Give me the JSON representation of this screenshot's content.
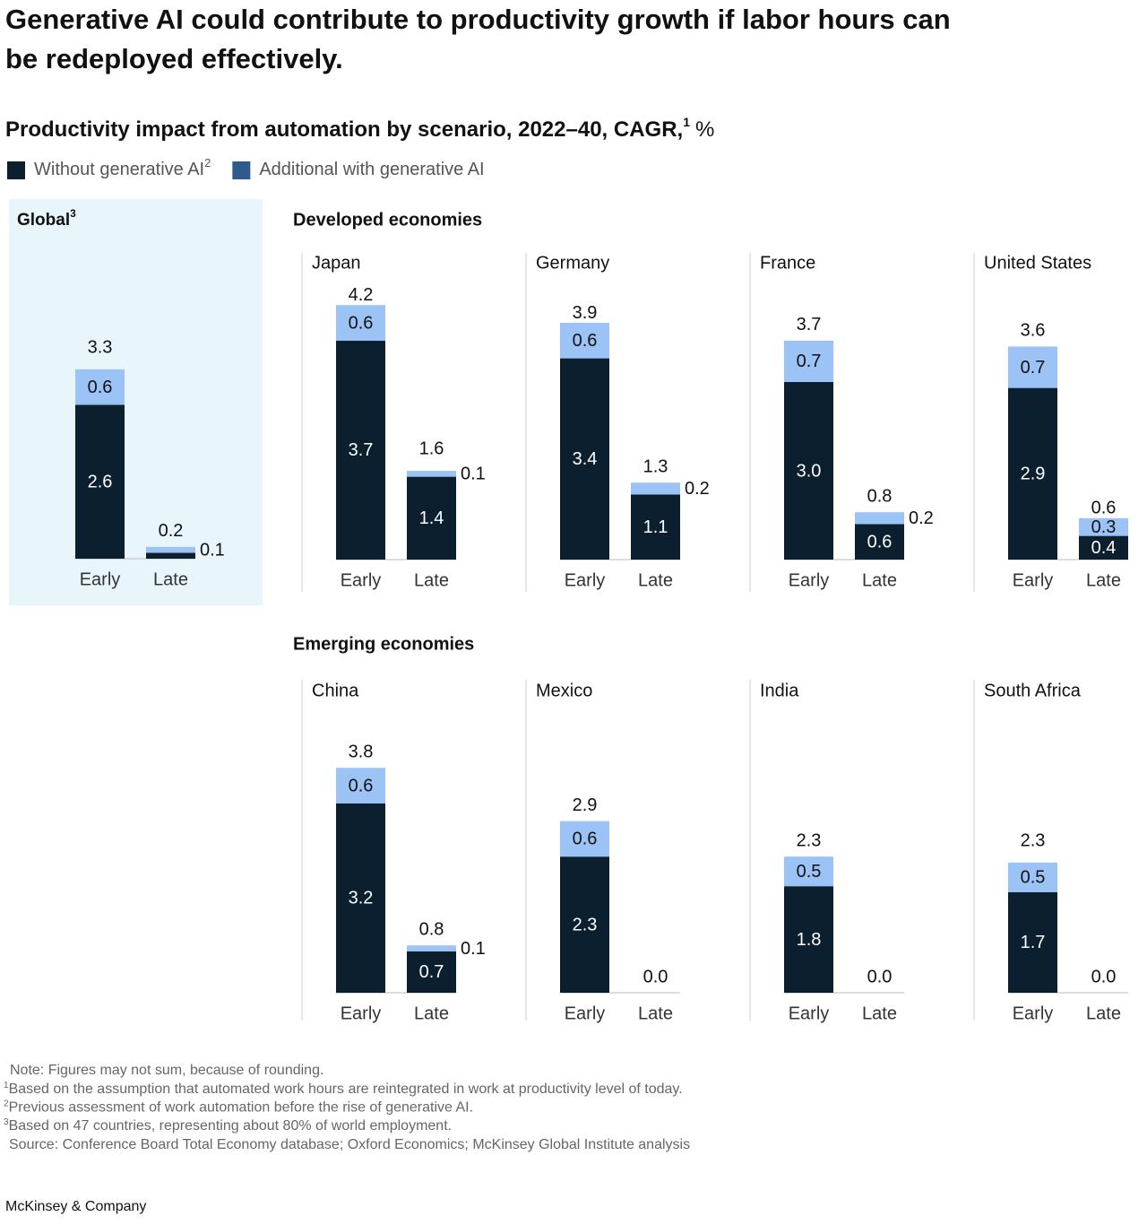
{
  "title": "Generative AI could contribute to productivity growth if labor hours can be redeployed effectively.",
  "chart_data": {
    "type": "bar",
    "stacked": true,
    "subtitle": "Productivity impact from automation by scenario, 2022–40, CAGR,",
    "subtitle_note": "1",
    "subtitle_unit": "%",
    "categories": [
      "Early",
      "Late"
    ],
    "series": [
      {
        "name": "Without generative AI",
        "name_note": "2",
        "color": "#0b1f2e",
        "legend_color": "#0b1f2e",
        "label_color": "#ffffff"
      },
      {
        "name": "Additional with generative AI",
        "color": "#9cc3f5",
        "legend_color": "#2e5b8c",
        "label_color": "#111111"
      }
    ],
    "highlight_color": "#e8f6fc",
    "global_panel": {
      "title": "Global",
      "title_note": "3",
      "values": [
        [
          2.6,
          0.1
        ],
        [
          0.6,
          0.1
        ]
      ],
      "value_labels": [
        [
          "2.6",
          null
        ],
        [
          "0.6",
          "0.1"
        ]
      ],
      "totals": [
        3.3,
        0.2
      ],
      "total_labels": [
        "3.3",
        "0.2"
      ]
    },
    "groups": [
      {
        "title": "Developed economies",
        "panels": [
          {
            "title": "Japan",
            "values": [
              [
                3.7,
                1.4
              ],
              [
                0.6,
                0.1
              ]
            ],
            "value_labels": [
              [
                "3.7",
                "1.4"
              ],
              [
                "0.6",
                "0.1"
              ]
            ],
            "totals": [
              4.2,
              1.6
            ],
            "total_labels": [
              "4.2",
              "1.6"
            ]
          },
          {
            "title": "Germany",
            "values": [
              [
                3.4,
                1.1
              ],
              [
                0.6,
                0.2
              ]
            ],
            "value_labels": [
              [
                "3.4",
                "1.1"
              ],
              [
                "0.6",
                "0.2"
              ]
            ],
            "totals": [
              3.9,
              1.3
            ],
            "total_labels": [
              "3.9",
              "1.3"
            ]
          },
          {
            "title": "France",
            "values": [
              [
                3.0,
                0.6
              ],
              [
                0.7,
                0.2
              ]
            ],
            "value_labels": [
              [
                "3.0",
                "0.6"
              ],
              [
                "0.7",
                "0.2"
              ]
            ],
            "totals": [
              3.7,
              0.8
            ],
            "total_labels": [
              "3.7",
              "0.8"
            ]
          },
          {
            "title": "United States",
            "values": [
              [
                2.9,
                0.4
              ],
              [
                0.7,
                0.3
              ]
            ],
            "value_labels": [
              [
                "2.9",
                "0.4"
              ],
              [
                "0.7",
                "0.3"
              ]
            ],
            "totals": [
              3.6,
              0.6
            ],
            "total_labels": [
              "3.6",
              "0.6"
            ]
          }
        ]
      },
      {
        "title": "Emerging economies",
        "panels": [
          {
            "title": "China",
            "values": [
              [
                3.2,
                0.7
              ],
              [
                0.6,
                0.1
              ]
            ],
            "value_labels": [
              [
                "3.2",
                "0.7"
              ],
              [
                "0.6",
                "0.1"
              ]
            ],
            "totals": [
              3.8,
              0.8
            ],
            "total_labels": [
              "3.8",
              "0.8"
            ]
          },
          {
            "title": "Mexico",
            "values": [
              [
                2.3,
                0
              ],
              [
                0.6,
                0
              ]
            ],
            "value_labels": [
              [
                "2.3",
                null
              ],
              [
                "0.6",
                null
              ]
            ],
            "totals": [
              2.9,
              0
            ],
            "total_labels": [
              "2.9",
              "0.0"
            ]
          },
          {
            "title": "India",
            "values": [
              [
                1.8,
                0
              ],
              [
                0.5,
                0
              ]
            ],
            "value_labels": [
              [
                "1.8",
                null
              ],
              [
                "0.5",
                null
              ]
            ],
            "totals": [
              2.3,
              0
            ],
            "total_labels": [
              "2.3",
              "0.0"
            ]
          },
          {
            "title": "South Africa",
            "values": [
              [
                1.7,
                0
              ],
              [
                0.5,
                0
              ]
            ],
            "value_labels": [
              [
                "1.7",
                null
              ],
              [
                "0.5",
                null
              ]
            ],
            "totals": [
              2.3,
              0
            ],
            "total_labels": [
              "2.3",
              "0.0"
            ]
          }
        ]
      }
    ]
  },
  "note": "Note: Figures may not sum, because of rounding.",
  "footnotes": [
    {
      "mark": "1",
      "text": "Based on the assumption that automated work hours are reintegrated in work at productivity level of today."
    },
    {
      "mark": "2",
      "text": "Previous assessment of work automation before the rise of generative AI."
    },
    {
      "mark": "3",
      "text": "Based on 47 countries, representing about 80% of world employment."
    }
  ],
  "source": "Source: Conference Board Total Economy database; Oxford Economics; McKinsey Global Institute analysis",
  "footer": "McKinsey & Company"
}
